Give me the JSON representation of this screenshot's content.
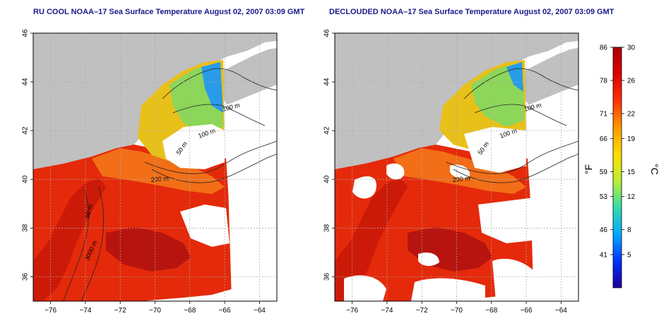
{
  "panels": [
    {
      "title": "RU COOL NOAA–17 Sea Surface Temperature August 02, 2007 03:09 GMT",
      "contour_labels": [
        "100 m",
        "100 m",
        "50 m",
        "200 m",
        "50 m",
        "3000 m"
      ]
    },
    {
      "title": "DECLOUDED NOAA–17 Sea Surface Temperature August 02, 2007 03:09 GMT",
      "contour_labels": [
        "100 m",
        "100 m",
        "50 m",
        "200 m"
      ]
    }
  ],
  "axes": {
    "x_ticks": [
      "−76",
      "−74",
      "−72",
      "−70",
      "−68",
      "−66",
      "−64"
    ],
    "y_ticks": [
      "36",
      "38",
      "40",
      "42",
      "44",
      "46"
    ],
    "x_range": [
      -77,
      -63
    ],
    "y_range": [
      35,
      46
    ]
  },
  "colorbar": {
    "f_label": "°F",
    "c_label": "°C",
    "f_ticks": [
      "86",
      "78",
      "71",
      "66",
      "59",
      "53",
      "46",
      "41"
    ],
    "c_ticks": [
      "30",
      "26",
      "22",
      "19",
      "15",
      "12",
      "8",
      "5"
    ],
    "c_values": [
      30,
      26,
      22,
      19,
      15,
      12,
      8,
      5
    ],
    "range_c": [
      1,
      30
    ],
    "colors": [
      "#1a0099",
      "#0033ff",
      "#00aaff",
      "#33ddaa",
      "#bbee33",
      "#ffdd00",
      "#ff9900",
      "#ff3300",
      "#dd0000",
      "#aa0000"
    ]
  },
  "colors": {
    "land": "#c0c0c0",
    "title": "#1a1a8c",
    "grid": "#aaaaaa"
  }
}
